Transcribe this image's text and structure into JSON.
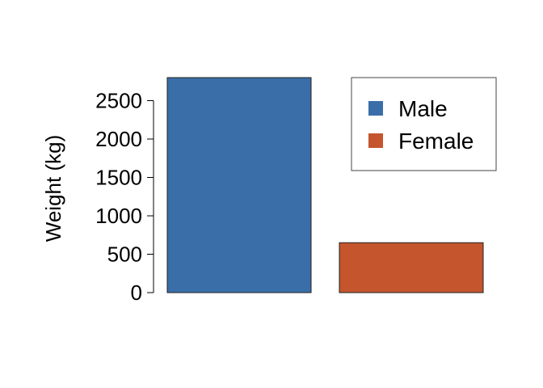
{
  "chart_data": {
    "type": "bar",
    "categories": [
      "Male",
      "Female"
    ],
    "values": [
      2800,
      650
    ],
    "title": "",
    "xlabel": "",
    "ylabel": "Weight (kg)",
    "ylim": [
      0,
      2800
    ],
    "yticks": [
      0,
      500,
      1000,
      1500,
      2000,
      2500
    ],
    "grid": false,
    "legend": {
      "placement": "top-right",
      "entries": [
        "Male",
        "Female"
      ]
    },
    "colors": [
      "#3A6EA8",
      "#C4552D"
    ]
  }
}
